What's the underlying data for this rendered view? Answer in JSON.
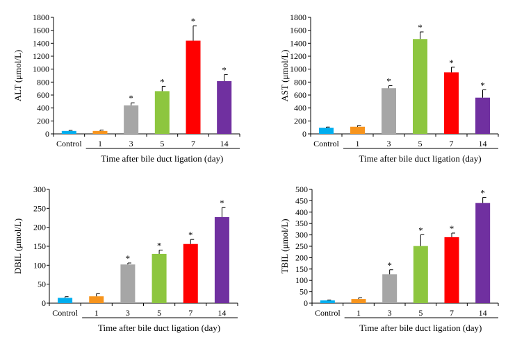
{
  "chart_data": [
    {
      "type": "bar",
      "ylabel": "ALT (μmol/L)",
      "xlabel": "Time after bile duct ligation (day)",
      "categories": [
        "Control",
        "1",
        "3",
        "5",
        "7",
        "14"
      ],
      "values": [
        45,
        45,
        440,
        660,
        1440,
        815
      ],
      "errors": [
        10,
        15,
        40,
        75,
        230,
        100
      ],
      "significant": [
        false,
        false,
        true,
        true,
        true,
        true
      ],
      "marker": "*",
      "colors": [
        "#00AEEF",
        "#F7941D",
        "#A6A6A6",
        "#8DC63F",
        "#FF0000",
        "#7030A0"
      ],
      "ylim": [
        0,
        1800
      ],
      "yticks": [
        "0",
        "200",
        "400",
        "600",
        "800",
        "1000",
        "1200",
        "1400",
        "1600",
        "1800"
      ]
    },
    {
      "type": "bar",
      "ylabel": "AST (μmol/L)",
      "xlabel": "Time after bile duct ligation (day)",
      "categories": [
        "Control",
        "1",
        "3",
        "5",
        "7",
        "14"
      ],
      "values": [
        95,
        110,
        705,
        1465,
        950,
        560
      ],
      "errors": [
        10,
        20,
        40,
        110,
        80,
        120
      ],
      "significant": [
        false,
        false,
        true,
        true,
        true,
        true
      ],
      "marker": "*",
      "colors": [
        "#00AEEF",
        "#F7941D",
        "#A6A6A6",
        "#8DC63F",
        "#FF0000",
        "#7030A0"
      ],
      "ylim": [
        0,
        1800
      ],
      "yticks": [
        "0",
        "200",
        "400",
        "600",
        "800",
        "1000",
        "1200",
        "1400",
        "1600",
        "1800"
      ]
    },
    {
      "type": "bar",
      "ylabel": "DBIL (μmol/L)",
      "xlabel": "Time after bile duct ligation (day)",
      "categories": [
        "Control",
        "1",
        "3",
        "5",
        "7",
        "14"
      ],
      "values": [
        14,
        18,
        102,
        130,
        156,
        227
      ],
      "errors": [
        3,
        7,
        4,
        10,
        12,
        25
      ],
      "significant": [
        false,
        false,
        true,
        true,
        true,
        true
      ],
      "marker": "*",
      "colors": [
        "#00AEEF",
        "#F7941D",
        "#A6A6A6",
        "#8DC63F",
        "#FF0000",
        "#7030A0"
      ],
      "ylim": [
        0,
        300
      ],
      "yticks": [
        "0",
        "50",
        "100",
        "150",
        "200",
        "250",
        "300"
      ]
    },
    {
      "type": "bar",
      "ylabel": "TBIL (μmol/L)",
      "xlabel": "Time after bile duct ligation (day)",
      "categories": [
        "Control",
        "1",
        "3",
        "5",
        "7",
        "14"
      ],
      "values": [
        12,
        18,
        127,
        251,
        290,
        440
      ],
      "errors": [
        2,
        6,
        20,
        50,
        18,
        25
      ],
      "significant": [
        false,
        false,
        true,
        true,
        true,
        true
      ],
      "marker": "*",
      "colors": [
        "#00AEEF",
        "#F7941D",
        "#A6A6A6",
        "#8DC63F",
        "#FF0000",
        "#7030A0"
      ],
      "ylim": [
        0,
        500
      ],
      "yticks": [
        "0",
        "50",
        "100",
        "150",
        "200",
        "250",
        "300",
        "350",
        "400",
        "450",
        "500"
      ]
    }
  ]
}
